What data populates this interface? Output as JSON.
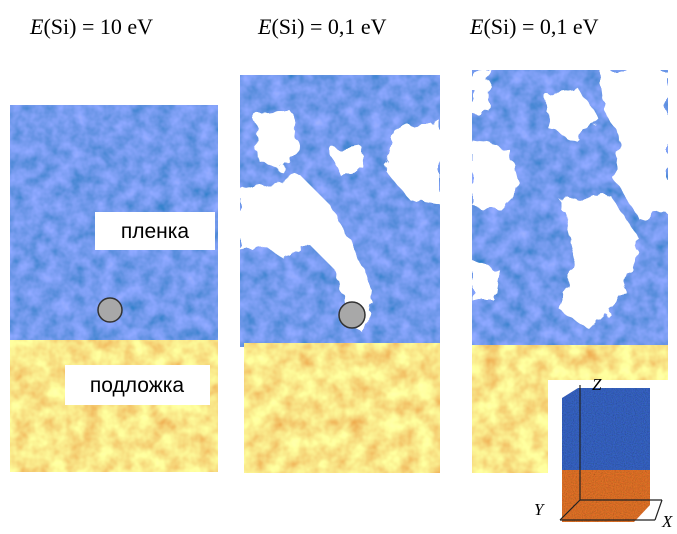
{
  "panels": [
    {
      "title": {
        "symbol": "E",
        "rest": "(Si) = 10 eV"
      }
    },
    {
      "title": {
        "symbol": "E",
        "rest": "(Si) = 0,1 eV"
      }
    },
    {
      "title": {
        "symbol": "E",
        "rest": "(Si) = 0,1 eV"
      }
    }
  ],
  "labels": {
    "film": "пленка",
    "substrate": "подложка"
  },
  "inset": {
    "z": "Z",
    "y": "Y",
    "x": "X"
  }
}
